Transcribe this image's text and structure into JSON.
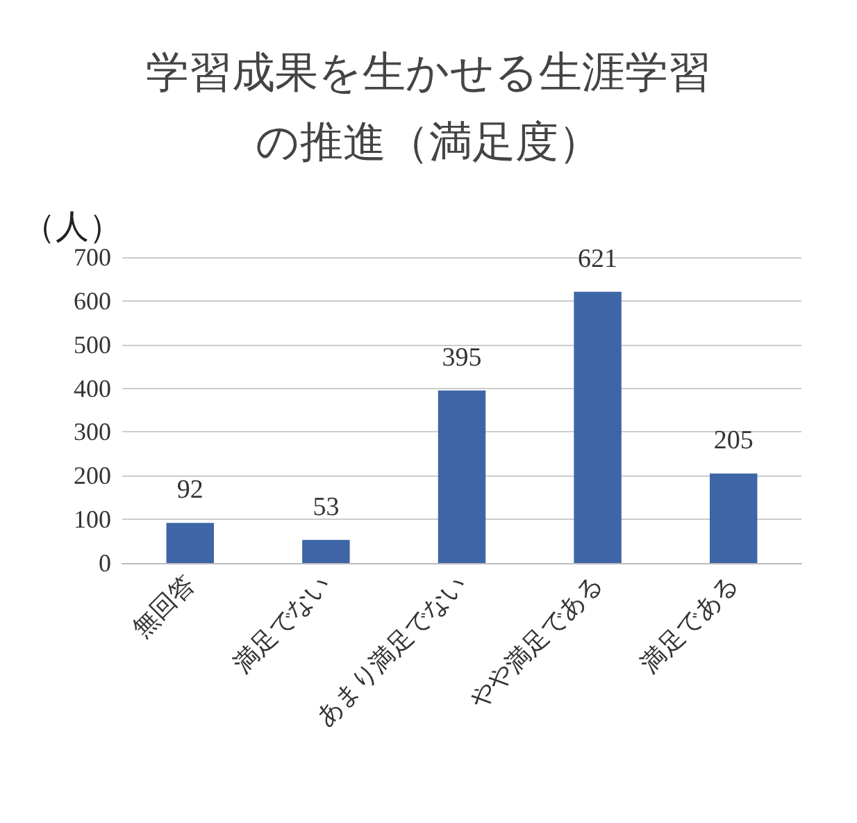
{
  "chart_data": {
    "type": "bar",
    "title": "学習成果を生かせる生涯学習の推進（満足度）",
    "ylabel": "（人）",
    "categories": [
      "無回答",
      "満足でない",
      "あまり満足でない",
      "やや満足である",
      "満足である"
    ],
    "values": [
      92,
      53,
      395,
      621,
      205
    ],
    "color": "#3e65a6",
    "ylim": [
      0,
      700
    ],
    "yticks": [
      0,
      100,
      200,
      300,
      400,
      500,
      600,
      700
    ],
    "grid": "y",
    "data_labels": true
  }
}
